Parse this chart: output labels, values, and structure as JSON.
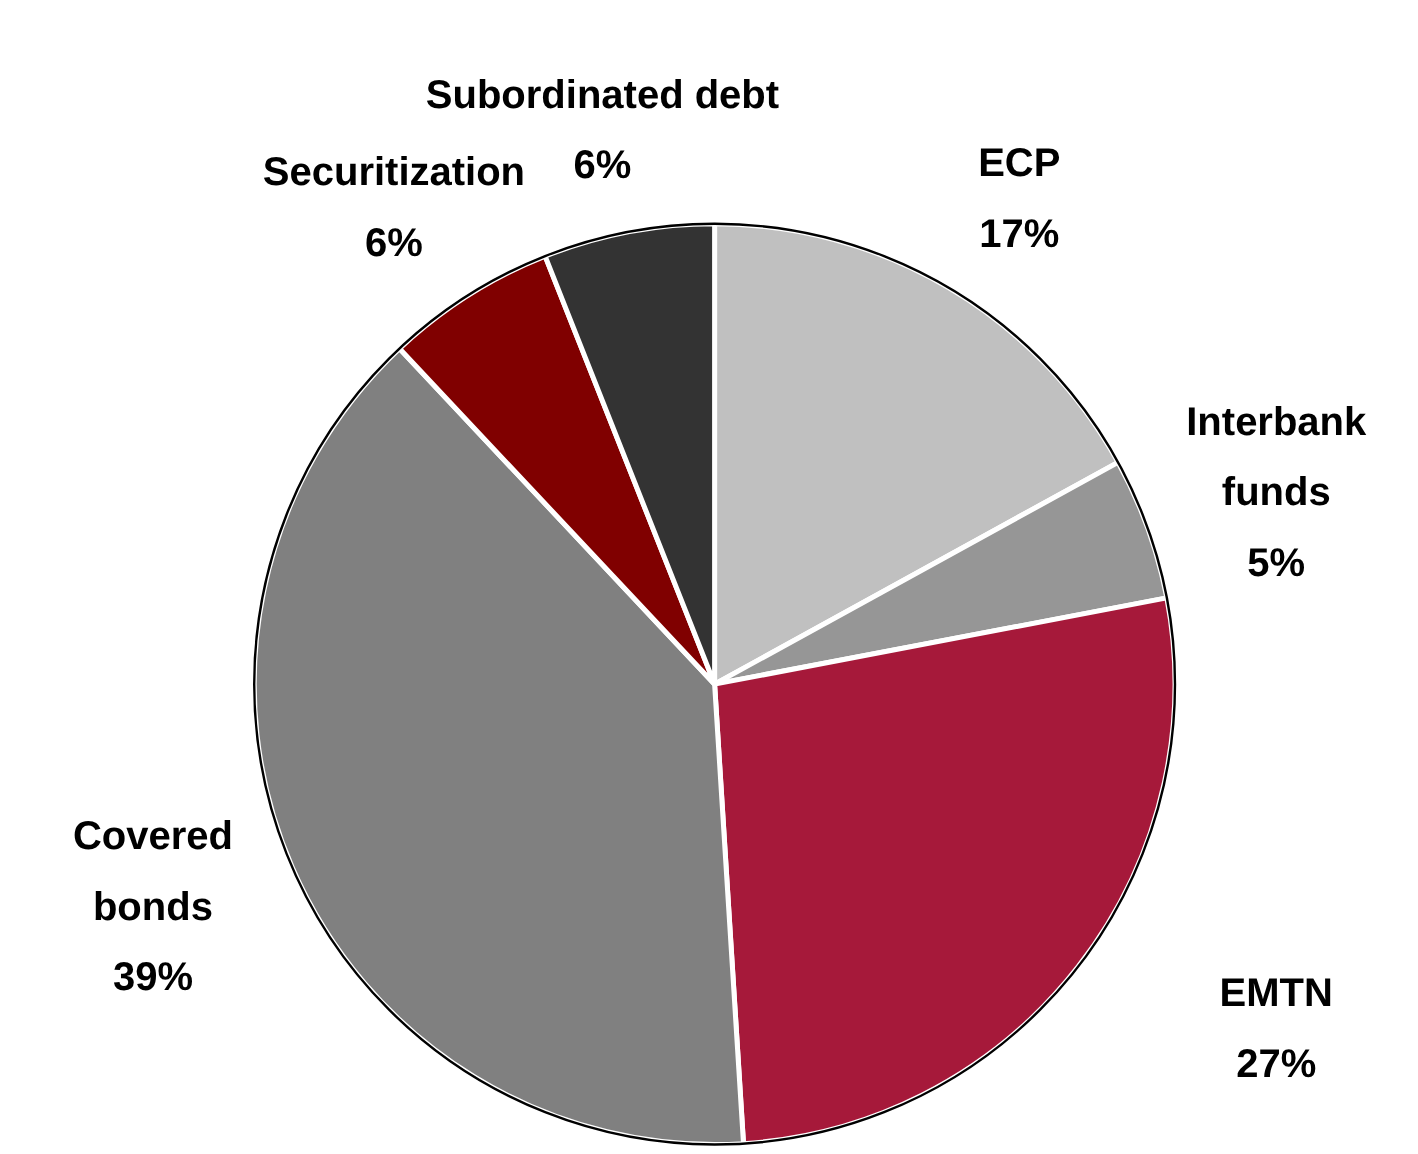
{
  "chart_data": {
    "type": "pie",
    "categories": [
      "ECP",
      "Interbank funds",
      "EMTN",
      "Covered bonds",
      "Securitization",
      "Subordinated debt"
    ],
    "values": [
      17,
      5,
      27,
      39,
      6,
      6
    ],
    "colors": [
      "#c0c0c0",
      "#969696",
      "#a6193a",
      "#808080",
      "#800000",
      "#333333"
    ],
    "value_labels": [
      "17%",
      "5%",
      "27%",
      "39%",
      "6%",
      "6%"
    ]
  }
}
